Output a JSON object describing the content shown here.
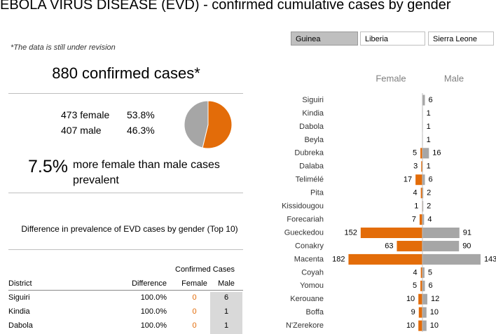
{
  "header": {
    "title": "EBOLA VIRUS DISEASE (EVD) - confirmed cumulative cases by gender",
    "note": "*The data is still under revision"
  },
  "tabs": [
    "Guinea",
    "Liberia",
    "Sierra Leone"
  ],
  "summary": {
    "headline": "880 confirmed cases*",
    "rows": [
      {
        "count": "473 female",
        "share": "53.8%"
      },
      {
        "count": "407 male",
        "share": "46.3%"
      }
    ],
    "difference": "7.5%",
    "difference_text": "more female than male cases prevalent"
  },
  "table": {
    "title": "Difference in prevalence of EVD cases by gender (Top 10)",
    "group_header": "Confirmed Cases",
    "columns": [
      "District",
      "Difference",
      "Female",
      "Male"
    ],
    "rows": [
      [
        "Siguiri",
        "100.0%",
        "0",
        "6"
      ],
      [
        "Kindia",
        "100.0%",
        "0",
        "1"
      ],
      [
        "Dabola",
        "100.0%",
        "0",
        "1"
      ]
    ]
  },
  "chart_data": [
    {
      "type": "pie",
      "categories": [
        "female",
        "male"
      ],
      "values": [
        473,
        407
      ],
      "colors": [
        "#e36c09",
        "#a6a6a6"
      ]
    },
    {
      "type": "butterfly",
      "categories": [
        "Siguiri",
        "Kindia",
        "Dabola",
        "Beyla",
        "Dubreka",
        "Dalaba",
        "Telimélé",
        "Pita",
        "Kissidougou",
        "Forecariah",
        "Gueckedou",
        "Conakry",
        "Macenta",
        "Coyah",
        "Yomou",
        "Kerouane",
        "Boffa",
        "N'Zerekore"
      ],
      "series": [
        {
          "name": "Female",
          "color": "#e36c09",
          "values": [
            0,
            0,
            0,
            0,
            5,
            3,
            17,
            4,
            1,
            7,
            152,
            63,
            182,
            4,
            5,
            10,
            9,
            10
          ]
        },
        {
          "name": "Male",
          "color": "#a6a6a6",
          "values": [
            6,
            1,
            1,
            1,
            16,
            1,
            6,
            2,
            2,
            4,
            91,
            90,
            143,
            5,
            6,
            12,
            10,
            10
          ]
        }
      ]
    }
  ]
}
